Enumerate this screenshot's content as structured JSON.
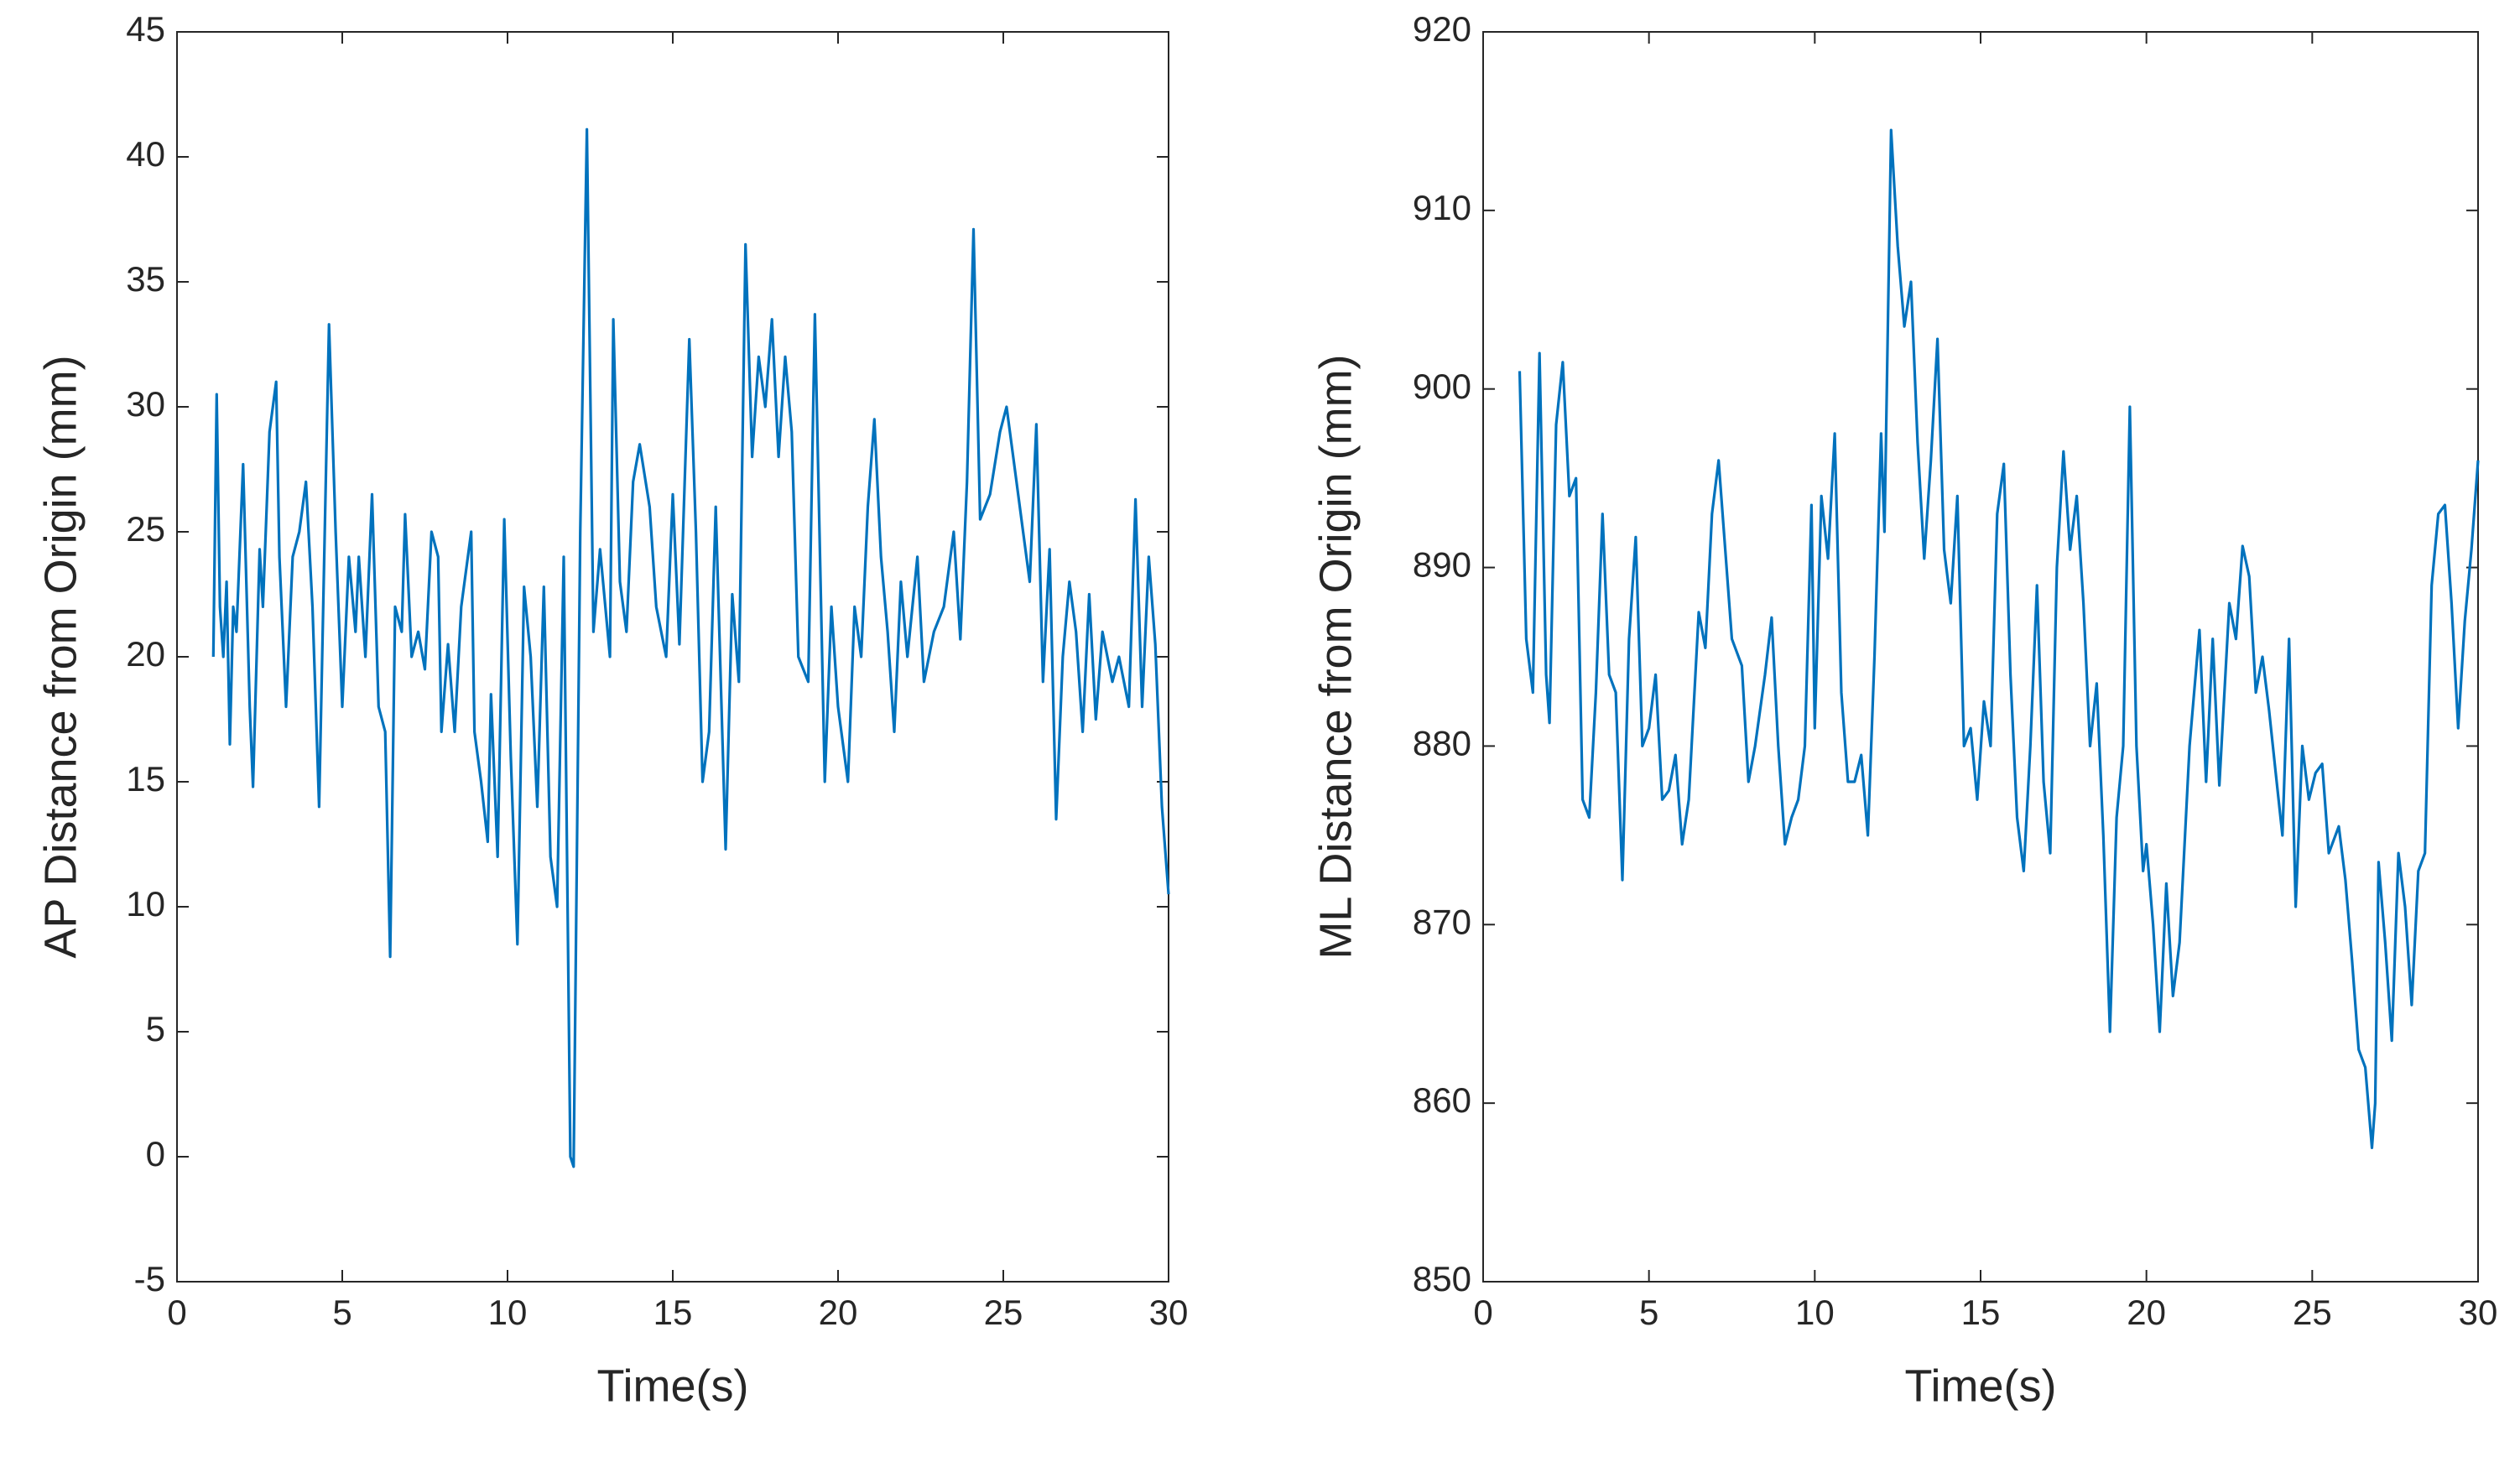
{
  "chart_data": [
    {
      "type": "line",
      "xlabel": "Time(s)",
      "ylabel": "AP Distance from Origin (mm)",
      "xlim": [
        0,
        30
      ],
      "xticks": [
        0,
        5,
        10,
        15,
        20,
        25,
        30
      ],
      "ylim": [
        -5,
        45
      ],
      "yticks": [
        -5,
        0,
        5,
        10,
        15,
        20,
        25,
        30,
        35,
        40,
        45
      ],
      "x": [
        1.1,
        1.2,
        1.3,
        1.4,
        1.5,
        1.6,
        1.7,
        1.8,
        2.0,
        2.2,
        2.3,
        2.5,
        2.6,
        2.8,
        3.0,
        3.1,
        3.3,
        3.5,
        3.7,
        3.9,
        4.1,
        4.3,
        4.6,
        4.8,
        5.0,
        5.2,
        5.4,
        5.5,
        5.7,
        5.9,
        6.1,
        6.3,
        6.45,
        6.6,
        6.8,
        6.9,
        7.1,
        7.3,
        7.5,
        7.7,
        7.9,
        8.0,
        8.2,
        8.4,
        8.6,
        8.9,
        9.0,
        9.2,
        9.4,
        9.5,
        9.7,
        9.9,
        10.1,
        10.3,
        10.5,
        10.7,
        10.9,
        11.1,
        11.3,
        11.5,
        11.7,
        11.9,
        12.0,
        12.2,
        12.4,
        12.6,
        12.8,
        13.1,
        13.2,
        13.4,
        13.6,
        13.8,
        14.0,
        14.3,
        14.5,
        14.8,
        15.0,
        15.2,
        15.5,
        15.7,
        15.9,
        16.1,
        16.3,
        16.6,
        16.8,
        17.0,
        17.2,
        17.4,
        17.6,
        17.8,
        18.0,
        18.2,
        18.4,
        18.6,
        18.8,
        19.1,
        19.3,
        19.6,
        19.8,
        20.0,
        20.3,
        20.5,
        20.7,
        20.9,
        21.1,
        21.3,
        21.5,
        21.7,
        21.9,
        22.1,
        22.4,
        22.6,
        22.9,
        23.2,
        23.5,
        23.7,
        23.9,
        24.1,
        24.3,
        24.6,
        24.9,
        25.1,
        25.3,
        25.6,
        25.8,
        26.0,
        26.2,
        26.4,
        26.6,
        26.8,
        27.0,
        27.2,
        27.4,
        27.6,
        27.8,
        28.0,
        28.3,
        28.5,
        28.8,
        29.0,
        29.2,
        29.4,
        29.6,
        29.8,
        30.0
      ],
      "series": [
        {
          "color": "#0072bd",
          "values": [
            20,
            30.5,
            22,
            20,
            23,
            16.5,
            22,
            21,
            27.7,
            18,
            14.8,
            24.3,
            22,
            29,
            31,
            24,
            18,
            24,
            25,
            27,
            22,
            14,
            33.3,
            25,
            18,
            24,
            21,
            24,
            20,
            26.5,
            18,
            17,
            8,
            22,
            21,
            25.7,
            20,
            21,
            19.5,
            25,
            24,
            17,
            20.5,
            17,
            22,
            25,
            17,
            15,
            12.6,
            18.5,
            12,
            25.5,
            16,
            8.5,
            22.8,
            20,
            14,
            22.8,
            12,
            10,
            24,
            0,
            -0.4,
            25,
            41.1,
            21,
            24.3,
            20,
            33.5,
            23,
            21,
            27,
            28.5,
            26,
            22,
            20,
            26.5,
            20.5,
            32.7,
            25,
            15,
            17,
            26,
            12.3,
            22.5,
            19,
            36.5,
            28,
            32,
            30,
            33.5,
            28,
            32,
            29,
            20,
            19,
            33.7,
            15,
            22,
            18,
            15,
            22,
            20,
            26,
            29.5,
            24,
            21,
            17,
            23,
            20,
            24,
            19,
            21,
            22,
            25,
            20.7,
            27,
            37.1,
            25.5,
            26.5,
            29,
            30,
            28,
            25,
            23,
            29.3,
            19,
            24.3,
            13.5,
            20,
            23,
            21,
            17,
            22.5,
            17.5,
            21,
            19,
            20,
            18,
            26.3,
            18,
            24,
            20.5,
            14,
            10.5
          ]
        }
      ]
    },
    {
      "type": "line",
      "xlabel": "Time(s)",
      "ylabel": "ML Distance from Origin (mm)",
      "xlim": [
        0,
        30
      ],
      "xticks": [
        0,
        5,
        10,
        15,
        20,
        25,
        30
      ],
      "ylim": [
        850,
        920
      ],
      "yticks": [
        850,
        860,
        870,
        880,
        890,
        900,
        910,
        920
      ],
      "x": [
        1.1,
        1.3,
        1.5,
        1.7,
        1.9,
        2.0,
        2.2,
        2.4,
        2.6,
        2.8,
        3.0,
        3.2,
        3.4,
        3.6,
        3.8,
        4.0,
        4.2,
        4.4,
        4.6,
        4.8,
        5.0,
        5.2,
        5.4,
        5.6,
        5.8,
        6.0,
        6.2,
        6.5,
        6.7,
        6.9,
        7.1,
        7.3,
        7.5,
        7.8,
        8.0,
        8.2,
        8.5,
        8.7,
        8.9,
        9.1,
        9.3,
        9.5,
        9.7,
        9.9,
        10.0,
        10.2,
        10.4,
        10.6,
        10.8,
        11.0,
        11.2,
        11.4,
        11.6,
        11.8,
        12.0,
        12.1,
        12.3,
        12.5,
        12.7,
        12.9,
        13.1,
        13.3,
        13.5,
        13.7,
        13.9,
        14.1,
        14.3,
        14.5,
        14.7,
        14.9,
        15.1,
        15.3,
        15.5,
        15.7,
        15.9,
        16.1,
        16.3,
        16.5,
        16.7,
        16.9,
        17.1,
        17.3,
        17.5,
        17.7,
        17.9,
        18.1,
        18.3,
        18.5,
        18.7,
        18.9,
        19.1,
        19.3,
        19.5,
        19.7,
        19.9,
        20.0,
        20.2,
        20.4,
        20.6,
        20.8,
        21.0,
        21.3,
        21.6,
        21.8,
        22.0,
        22.2,
        22.5,
        22.7,
        22.9,
        23.1,
        23.3,
        23.5,
        23.7,
        23.9,
        24.1,
        24.3,
        24.5,
        24.7,
        24.9,
        25.1,
        25.3,
        25.5,
        25.8,
        26.0,
        26.2,
        26.4,
        26.6,
        26.8,
        26.9,
        27.0,
        27.2,
        27.4,
        27.6,
        27.8,
        28.0,
        28.2,
        28.4,
        28.6,
        28.8,
        29.0,
        29.2,
        29.4,
        29.6,
        29.8,
        30.0
      ],
      "series": [
        {
          "color": "#0072bd",
          "values": [
            901,
            886,
            883,
            902,
            884,
            881.3,
            898,
            901.5,
            894,
            895,
            877,
            876,
            883,
            893,
            884,
            883,
            872.5,
            886,
            891.7,
            880,
            881,
            884,
            877,
            877.5,
            879.5,
            874.5,
            877,
            887.5,
            885.5,
            893,
            896,
            891,
            886,
            884.5,
            878,
            880,
            884,
            887.2,
            880,
            874.5,
            876,
            877,
            880,
            893.5,
            881,
            894,
            890.5,
            897.5,
            883,
            878,
            878,
            879.5,
            875,
            885,
            897.5,
            892,
            914.5,
            908,
            903.5,
            906,
            897,
            890.5,
            896,
            902.8,
            891,
            888,
            894,
            880,
            881,
            877,
            882.5,
            880,
            893,
            895.8,
            884,
            876,
            873,
            880,
            889,
            878,
            874,
            890,
            896.5,
            891,
            894,
            888,
            880,
            883.5,
            875,
            864,
            876,
            880,
            899,
            880,
            873,
            874.5,
            870,
            864,
            872.3,
            866,
            869,
            880,
            886.5,
            878,
            886,
            877.8,
            888,
            886,
            891.2,
            889.5,
            883,
            885,
            882,
            878.5,
            875,
            886,
            871,
            880,
            877,
            878.5,
            879,
            874,
            875.5,
            872.5,
            868,
            863,
            862,
            857.5,
            860,
            873.5,
            869,
            863.5,
            874,
            871,
            865.5,
            873,
            874,
            889,
            893,
            893.5,
            888,
            881,
            887,
            891,
            896
          ]
        }
      ]
    }
  ]
}
